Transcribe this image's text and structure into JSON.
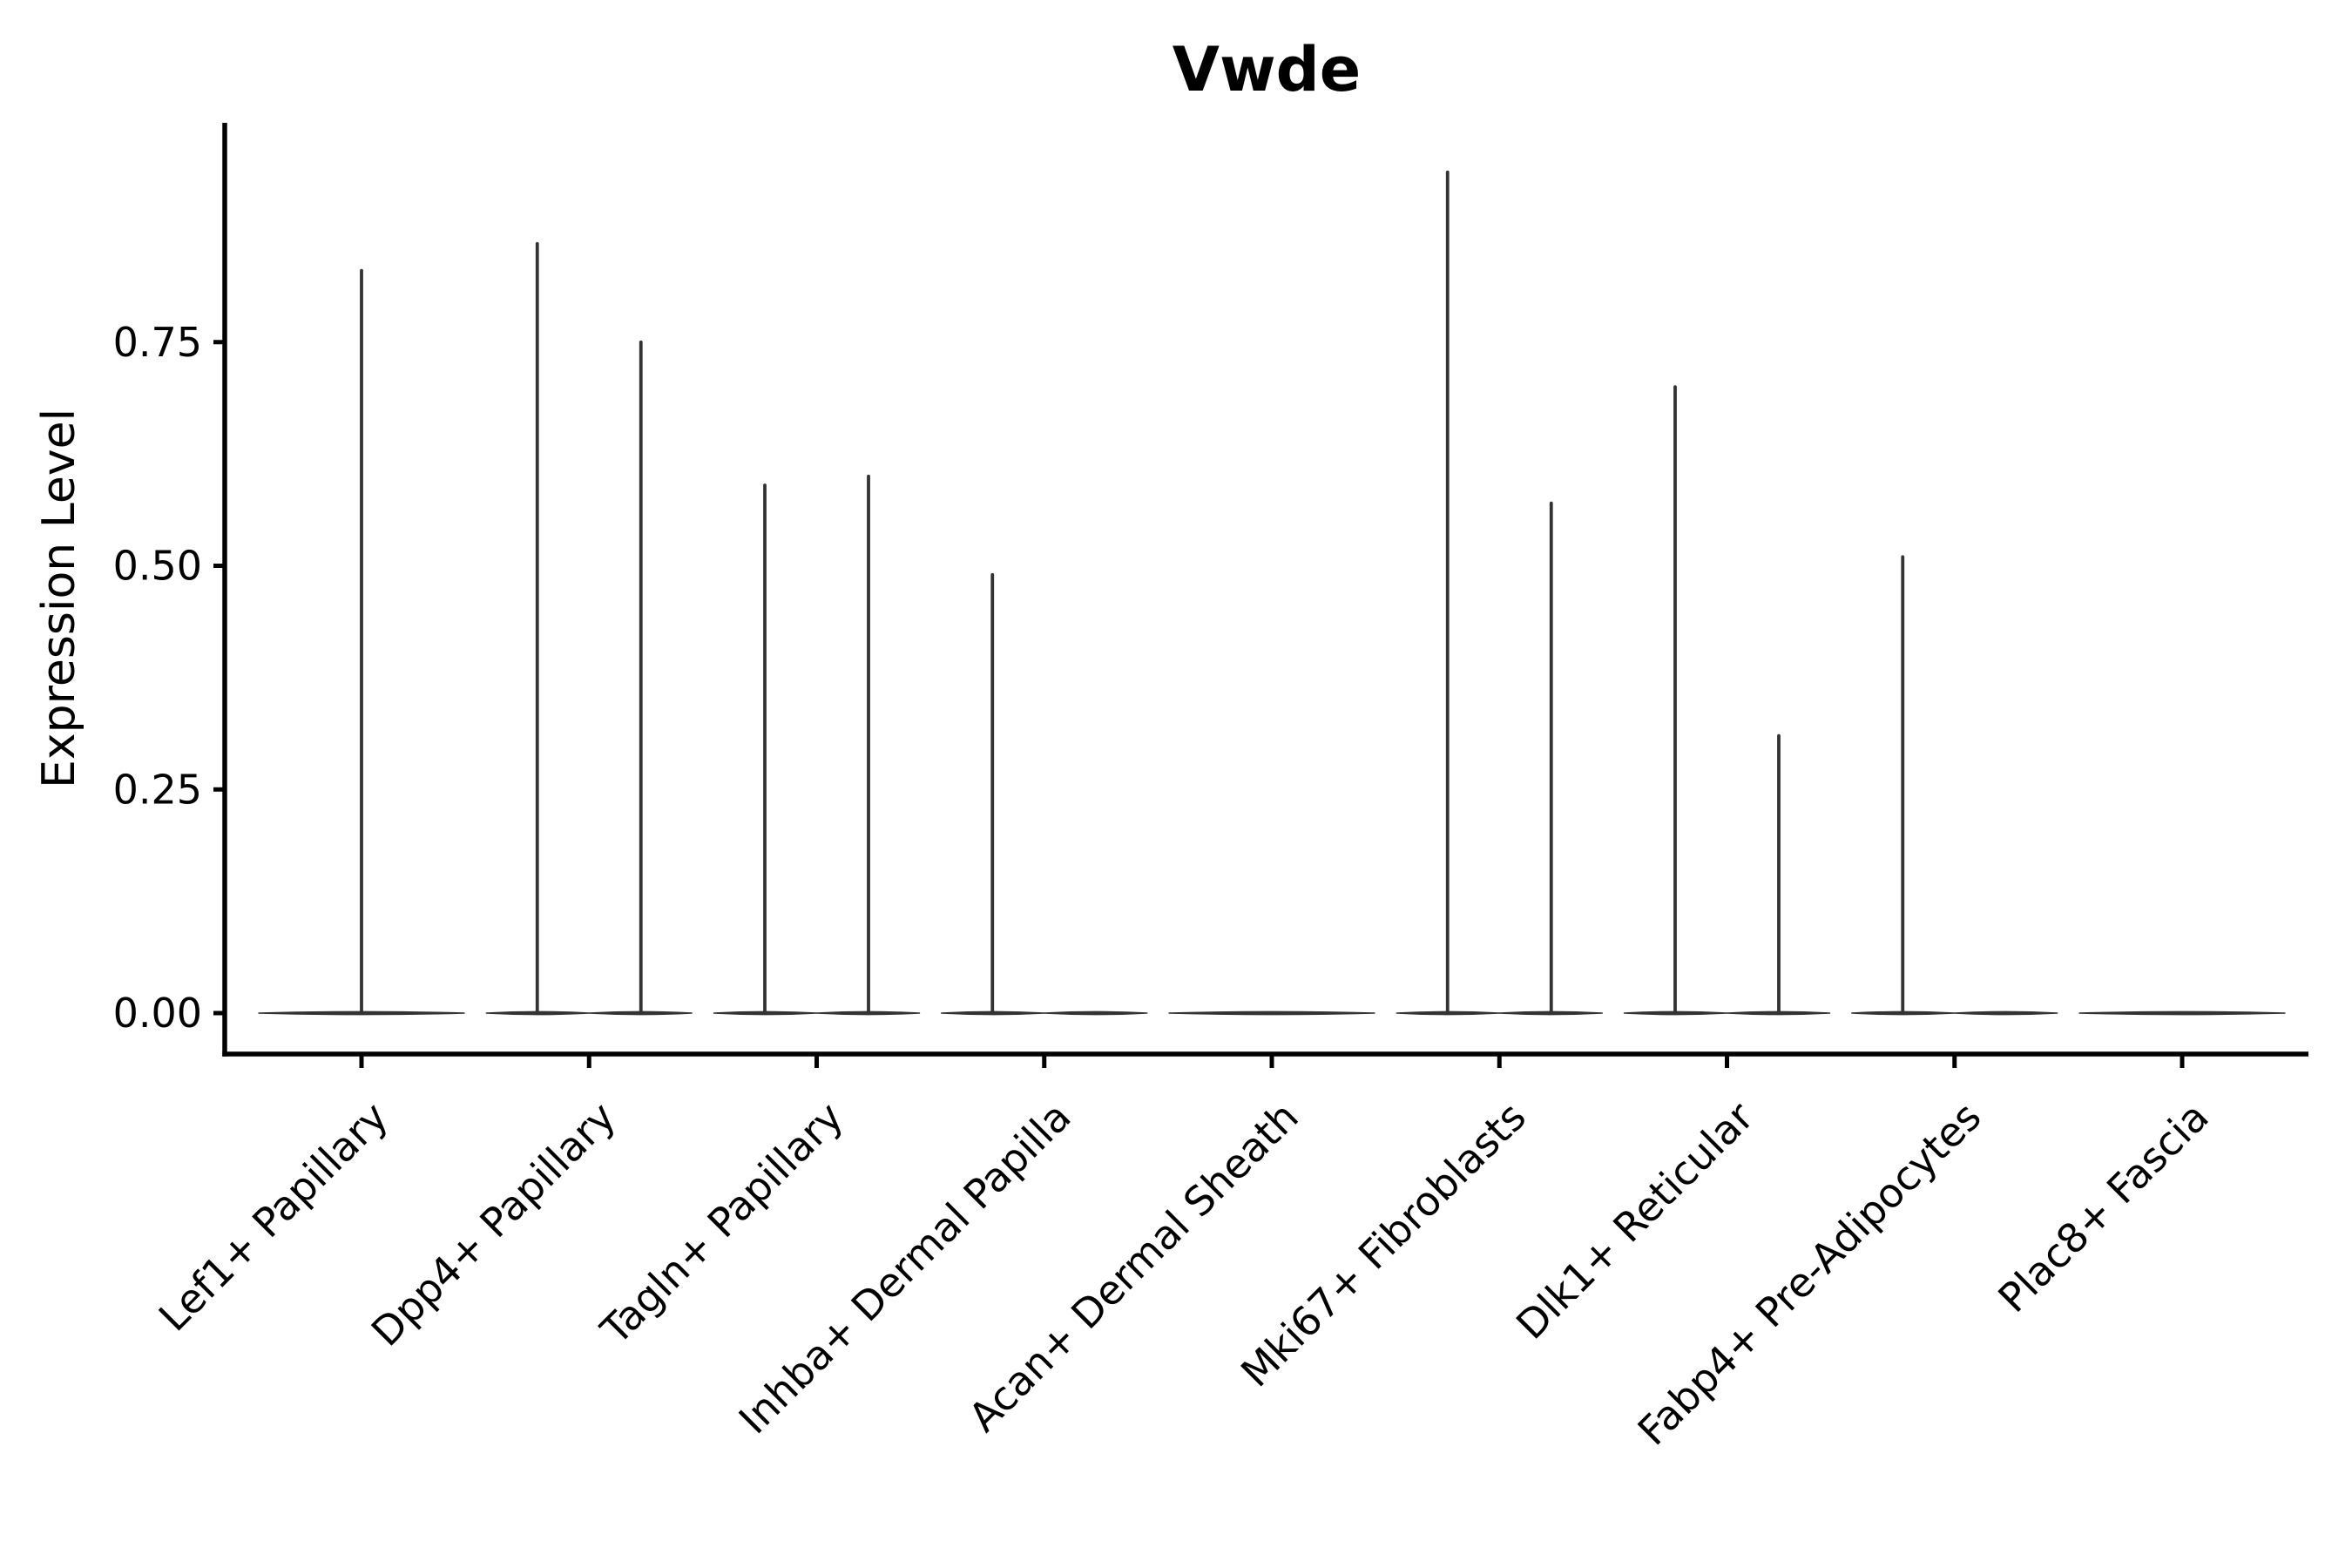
{
  "chart_data": {
    "type": "violin",
    "title": "Vwde",
    "ylabel": "Expression Level",
    "xlabel": "",
    "yticks": [
      "0.00",
      "0.25",
      "0.50",
      "0.75"
    ],
    "ytick_values": [
      0.0,
      0.25,
      0.5,
      0.75
    ],
    "ylim": [
      0.0,
      1.0
    ],
    "grid": false,
    "legend": "none",
    "x_tick_rotation": 45,
    "violin_color": "#333333",
    "axis_color": "#000000",
    "categories": [
      "Lef1+ Papillary",
      "Dpp4+ Papillary",
      "Tagln+ Papillary",
      "Inhba+ Dermal Papilla",
      "Acan+ Dermal Sheath",
      "Mki67+ Fibroblasts",
      "Dlk1+ Reticular",
      "Fabp4+ Pre-Adipocytes",
      "Plac8+ Fascia"
    ],
    "series": [
      {
        "category": "Lef1+ Papillary",
        "baseline_at": 0.0,
        "peaks": [
          {
            "position": "center",
            "max": 0.83
          }
        ]
      },
      {
        "category": "Dpp4+ Papillary",
        "baseline_at": 0.0,
        "peaks": [
          {
            "position": "left",
            "max": 0.86
          },
          {
            "position": "right",
            "max": 0.75
          }
        ]
      },
      {
        "category": "Tagln+ Papillary",
        "baseline_at": 0.0,
        "peaks": [
          {
            "position": "left",
            "max": 0.59
          },
          {
            "position": "right",
            "max": 0.6
          }
        ]
      },
      {
        "category": "Inhba+ Dermal Papilla",
        "baseline_at": 0.0,
        "peaks": [
          {
            "position": "left",
            "max": 0.49
          }
        ]
      },
      {
        "category": "Acan+ Dermal Sheath",
        "baseline_at": 0.0,
        "peaks": []
      },
      {
        "category": "Mki67+ Fibroblasts",
        "baseline_at": 0.0,
        "peaks": [
          {
            "position": "left",
            "max": 0.94
          },
          {
            "position": "right",
            "max": 0.57
          }
        ]
      },
      {
        "category": "Dlk1+ Reticular",
        "baseline_at": 0.0,
        "peaks": [
          {
            "position": "left",
            "max": 0.7
          },
          {
            "position": "right",
            "max": 0.31
          }
        ]
      },
      {
        "category": "Fabp4+ Pre-Adipocytes",
        "baseline_at": 0.0,
        "peaks": [
          {
            "position": "left",
            "max": 0.51
          }
        ]
      },
      {
        "category": "Plac8+ Fascia",
        "baseline_at": 0.0,
        "peaks": []
      }
    ]
  }
}
